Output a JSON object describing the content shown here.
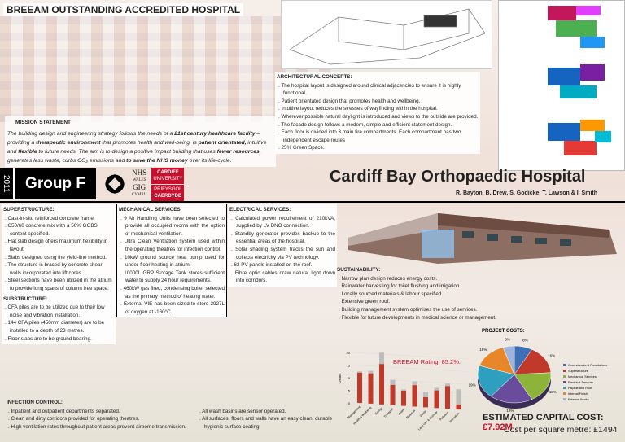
{
  "header": {
    "title": "BREEAM OUTSTANDING ACCREDITED HOSPITAL"
  },
  "mission": {
    "heading": "MISSION STATEMENT",
    "parts": [
      {
        "t": "The building design and engineering strategy follows the needs of a ",
        "b": false
      },
      {
        "t": "21st century healthcare facility",
        "b": true
      },
      {
        "t": " – providing a ",
        "b": false
      },
      {
        "t": "therapeutic environment",
        "b": true
      },
      {
        "t": " that promotes health and well-being, is ",
        "b": false
      },
      {
        "t": "patient orientated,",
        "b": true
      },
      {
        "t": " intuitive and ",
        "b": false
      },
      {
        "t": "flexible",
        "b": true
      },
      {
        "t": " to future needs. The aim is to design a positive impact building that uses ",
        "b": false
      },
      {
        "t": "fewer resources,",
        "b": true
      },
      {
        "t": " generates less waste, curbs CO₂ emissions and ",
        "b": false
      },
      {
        "t": "to save the NHS money",
        "b": true
      },
      {
        "t": " over its life-cycle.",
        "b": false
      }
    ]
  },
  "band": {
    "year": "2011",
    "group": "Group F",
    "nhs": [
      "NHS",
      "WALES",
      "GIG",
      "CYMRU"
    ],
    "university": [
      "CARDIFF",
      "UNIVERSITY",
      "PRIFYSGOL",
      "CAERDYDD"
    ]
  },
  "architectural": {
    "heading": "ARCHITECTURAL CONCEPTS:",
    "items": [
      "The hospital layout is designed around clinical adjacencies to ensure it is highly functional.",
      "Patient orientated design that promotes health and wellbeing.",
      "Intuitive layout reduces the stresses of wayfinding within the hospital.",
      "Wherever possible natural daylight is introduced and views to the outside are provided.",
      "The facade design follows a modern, simple and efficient statement design.",
      "Each floor is divided into 3 main fire compartments. Each compartment has two independent escape routes",
      "25% Green Space."
    ]
  },
  "project": {
    "title": "Cardiff Bay Orthopaedic Hospital",
    "authors": "R. Bayton, B. Drew, S. Godicke, T. Lawson & I. Smith"
  },
  "superstructure": {
    "heading": "SUPERSTRUCTURE:",
    "items": [
      "Cast-in-situ reinforced concrete frame.",
      "C50/60 concrete mix with a 50% GGBS content specified.",
      "Flat slab design offers maximum flexibility in layout.",
      "Slabs designed using the yield-line method.",
      "The structure is braced by concrete shear walls incorporated into lift cores.",
      "Steel sections have been utilized in the atrium to provide long spans of column free space."
    ]
  },
  "substructure": {
    "heading": "SUBSTRUCTURE:",
    "items": [
      "CFA piles are to be utilized due to their low noise and vibration installation.",
      "144 CFA piles (450mm diameter) are to be installed to a depth of 23 metres.",
      "Floor slabs are to be ground bearing."
    ]
  },
  "mechanical": {
    "heading": "MECHANICAL SERVICES",
    "items": [
      "9 Air Handling Units have been selected to provide all occupied rooms with the option of mechanical ventilation.",
      "Ultra Clean Ventilation system used within the operating theatres for infection control.",
      "10kW ground source heat pump used for under-floor heating in atrium.",
      "10000L GRP Storage Tank stores sufficient water to supply 24 hour requirements.",
      "460kW gas fired, condensing boiler selected as the primary method of heating water.",
      "External VIE has been sized to store 3927L of oxygen at -160°C."
    ]
  },
  "electrical": {
    "heading": "ELECTRICAL SERVICES:",
    "items": [
      "Calculated power requirement of 210kVA, supplied by LV DNO connection.",
      "Standby generator provides backup to the essential areas of the hospital.",
      "Solar shading system tracks the sun and collects electricity via PV technology.",
      "62 PV panels installed on the roof.",
      "Fibre optic cables draw natural light down into corridors."
    ]
  },
  "sustainability": {
    "heading": "SUSTAINABILITY:",
    "items": [
      "Narrow plan design reduces energy costs.",
      "Rainwater harvesting for toilet flushing and irrigation.",
      "Locally sourced materials & labour specified.",
      "Extensive green roof.",
      "Building management system optimises the use of services.",
      "Flexible for future developments in medical science or management."
    ]
  },
  "infection": {
    "heading": "INFECTION CONTROL:",
    "left": [
      "Inpatient and outpatient departments separated.",
      "Clean and dirty corridors provided for operating theatres.",
      "High ventilation rates throughout patient areas prevent airborne transmission."
    ],
    "right": [
      "All wash basins are sensor operated.",
      "All surfaces, floors and walls have an easy clean, durable hygienic surface coating."
    ]
  },
  "costs": {
    "estimated_label": "ESTIMATED CAPITAL COST: ",
    "estimated_value": "£7.92M",
    "per_sqm": "Cost per square metre: £1494",
    "accent": "#c8102e"
  },
  "chart_data": [
    {
      "type": "bar",
      "title": "BREEAM Rating: 85.2%.",
      "ylabel": "Credits",
      "ylim": [
        0,
        20
      ],
      "yticks": [
        0,
        5,
        10,
        15,
        20
      ],
      "categories": [
        "Management",
        "Health & Wellbeing",
        "Energy",
        "Transport",
        "Water",
        "Materials",
        "Waste",
        "Land Use & Ecology",
        "Pollution",
        "Innovation"
      ],
      "series": [
        {
          "name": "Achieved",
          "color": "#c0392b",
          "values": [
            12,
            12,
            16,
            8,
            6,
            8.5,
            4,
            7,
            9,
            2
          ]
        },
        {
          "name": "Available",
          "color": "#bdbdbd",
          "values": [
            12.5,
            13,
            20.5,
            10,
            6.5,
            10,
            6,
            8,
            10,
            8
          ]
        }
      ]
    },
    {
      "type": "pie",
      "title": "PROJECT COSTS:",
      "legend": "right",
      "labels": [
        "Groundworks & Foundations",
        "Superstructure",
        "Mechanical Services",
        "Electrical Services",
        "Façade and Roof",
        "Internal Finish",
        "External Works"
      ],
      "values": [
        8,
        16,
        18,
        19,
        19,
        15,
        5
      ],
      "colors": [
        "#3f6fb5",
        "#c0392b",
        "#8db33a",
        "#6a4c9c",
        "#2f9fc0",
        "#e8862a",
        "#9db5de"
      ]
    }
  ]
}
